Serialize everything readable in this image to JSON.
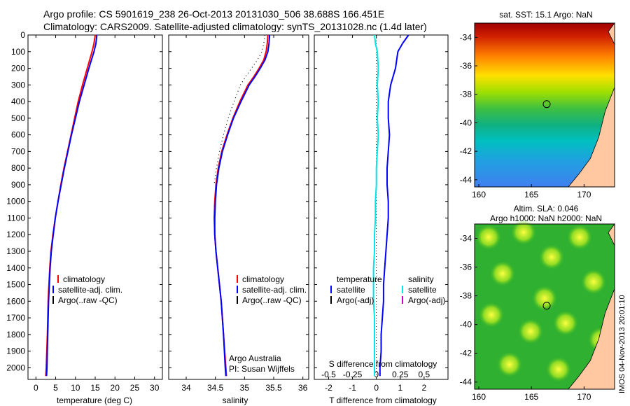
{
  "header": {
    "line1": "Argo profile: CS 5901619_238 26-Oct-2013 20131030_506 38.688S 166.451E",
    "line2": "Climatology: CARS2009. Satellite-adjusted climatology: synTS_20131028.nc (1.4d later)"
  },
  "footer": {
    "credit_line1": "Argo Australia",
    "credit_line2": "PI: Susan Wijffels",
    "side_stamp": "IMOS 04-Nov-2013 20:01:10"
  },
  "colors": {
    "climatology": "#ff0000",
    "satellite": "#0000ff",
    "argo": "#000000",
    "s_satellite": "#00e5e5",
    "s_argo": "#cc00cc",
    "land": "#ffc8a0"
  },
  "legend_tc": [
    {
      "label": "climatology",
      "color": "#ff0000"
    },
    {
      "label": "satellite-adj. clim.",
      "color": "#0000ff"
    },
    {
      "label": "Argo(..raw -QC)",
      "color": "#000000"
    }
  ],
  "legend_diff": {
    "temperature_title": "temperature",
    "salinity_title": "salinity",
    "temperature_items": [
      {
        "label": "satellite",
        "color": "#0000ff"
      },
      {
        "label": "Argo(-adj)",
        "color": "#000000"
      }
    ],
    "salinity_items": [
      {
        "label": "satellite",
        "color": "#00e5e5"
      },
      {
        "label": "Argo(-adj)",
        "color": "#cc00cc"
      }
    ]
  },
  "chart_data": [
    {
      "type": "line",
      "name": "temperature_profile",
      "xlabel": "temperature (deg C)",
      "ylabel": "",
      "xlim": [
        -2,
        32
      ],
      "ylim": [
        2070,
        0
      ],
      "y_reversed": true,
      "xticks": [
        0,
        5,
        10,
        15,
        20,
        25,
        30
      ],
      "yticks": [
        0,
        100,
        200,
        300,
        400,
        500,
        600,
        700,
        800,
        900,
        1000,
        1100,
        1200,
        1300,
        1400,
        1500,
        1600,
        1700,
        1800,
        1900,
        2000
      ],
      "series": [
        {
          "name": "climatology",
          "depth": [
            0,
            50,
            100,
            200,
            300,
            400,
            500,
            600,
            700,
            800,
            900,
            1000,
            1100,
            1200,
            1300,
            1400,
            1500,
            1600,
            1800,
            2000,
            2050
          ],
          "values": [
            15.0,
            14.7,
            14.2,
            13.0,
            11.8,
            10.7,
            9.8,
            8.9,
            8.0,
            7.1,
            6.3,
            5.6,
            4.9,
            4.3,
            3.8,
            3.5,
            3.3,
            3.1,
            2.9,
            2.6,
            2.5
          ]
        },
        {
          "name": "satellite-adj. clim.",
          "depth": [
            0,
            50,
            100,
            200,
            300,
            400,
            500,
            600,
            700,
            800,
            900,
            1000,
            1100,
            1200,
            1300,
            1400,
            1500,
            1600,
            1800,
            2000,
            2050
          ],
          "values": [
            15.4,
            15.2,
            14.7,
            13.4,
            12.2,
            11.0,
            10.0,
            9.0,
            8.1,
            7.2,
            6.4,
            5.6,
            4.9,
            4.4,
            3.9,
            3.6,
            3.4,
            3.2,
            3.0,
            2.8,
            2.7
          ]
        }
      ]
    },
    {
      "type": "line",
      "name": "salinity_profile",
      "xlabel": "salinity",
      "ylabel": "",
      "xlim": [
        33.7,
        36.1
      ],
      "ylim": [
        2070,
        0
      ],
      "y_reversed": true,
      "xticks": [
        34,
        34.5,
        35,
        35.5,
        36
      ],
      "series": [
        {
          "name": "climatology",
          "depth": [
            0,
            50,
            100,
            150,
            200,
            250,
            300,
            400,
            500,
            600,
            700,
            800,
            900,
            1000,
            1100,
            1200,
            1300,
            1400,
            1500,
            1600,
            1800,
            2000,
            2050
          ],
          "values": [
            35.4,
            35.39,
            35.37,
            35.33,
            35.25,
            35.16,
            35.06,
            34.92,
            34.8,
            34.7,
            34.61,
            34.55,
            34.51,
            34.49,
            34.48,
            34.49,
            34.51,
            34.54,
            34.57,
            34.6,
            34.64,
            34.68,
            34.69
          ]
        },
        {
          "name": "satellite-adj. clim.",
          "depth": [
            0,
            50,
            100,
            150,
            200,
            250,
            300,
            400,
            500,
            600,
            700,
            800,
            900,
            1000,
            1100,
            1200,
            1300,
            1400,
            1500,
            1600,
            1800,
            2000,
            2050
          ],
          "values": [
            35.43,
            35.42,
            35.4,
            35.35,
            35.27,
            35.18,
            35.08,
            34.94,
            34.81,
            34.71,
            34.62,
            34.56,
            34.52,
            34.5,
            34.49,
            34.49,
            34.51,
            34.54,
            34.57,
            34.6,
            34.64,
            34.67,
            34.68
          ]
        },
        {
          "name": "Argo(..raw -QC)",
          "depth": [
            0,
            50,
            100,
            150,
            200,
            250,
            300,
            400,
            500,
            600,
            700,
            800,
            900
          ],
          "values": [
            35.35,
            35.33,
            35.3,
            35.22,
            35.12,
            35.02,
            34.93,
            34.82,
            34.72,
            34.64,
            34.57,
            34.52,
            34.48
          ]
        }
      ]
    },
    {
      "type": "line",
      "name": "difference_from_climatology",
      "xlabel": "T difference from climatology",
      "xlabel_top": "S difference from climatology",
      "xlim": [
        -2.6,
        3.0
      ],
      "xlim_top": [
        -0.65,
        0.75
      ],
      "ylim": [
        2070,
        0
      ],
      "y_reversed": true,
      "xticks": [
        -2,
        -1,
        0,
        1,
        2
      ],
      "xticks_top": [
        -0.5,
        -0.25,
        0,
        0.25,
        0.5
      ],
      "series": [
        {
          "name": "temperature satellite",
          "depth": [
            0,
            50,
            100,
            200,
            300,
            400,
            500,
            600,
            700,
            800,
            900,
            1000,
            1100,
            1200,
            1300,
            1400,
            1500,
            1600,
            1700,
            1800,
            1900,
            2000,
            2050
          ],
          "values": [
            1.35,
            1.1,
            0.9,
            0.8,
            0.6,
            0.5,
            0.5,
            0.55,
            0.5,
            0.45,
            0.45,
            0.5,
            0.5,
            0.45,
            0.4,
            0.35,
            0.3,
            0.3,
            0.25,
            0.2,
            0.2,
            0.15,
            0.15
          ]
        },
        {
          "name": "salinity satellite",
          "depth": [
            0,
            50,
            100,
            200,
            300,
            400,
            500,
            600,
            700,
            800,
            900,
            1000,
            1100,
            1200,
            1300,
            1400,
            1500,
            1600,
            1700,
            1800,
            1900,
            2000,
            2050
          ],
          "values": [
            -0.02,
            -0.01,
            0.01,
            0.02,
            0.01,
            0.02,
            0.01,
            0.02,
            0.01,
            0.0,
            0.0,
            -0.01,
            -0.01,
            -0.02,
            -0.02,
            -0.03,
            -0.03,
            -0.03,
            -0.02,
            -0.02,
            -0.02,
            -0.02,
            -0.02
          ]
        }
      ]
    },
    {
      "type": "heatmap",
      "name": "sst_map",
      "title": "sat. SST: 15.1  Argo: NaN",
      "xlim": [
        159.6,
        172.9
      ],
      "ylim": [
        -44.5,
        -33.0
      ],
      "xticks": [
        160,
        165,
        170
      ],
      "yticks": [
        -34,
        -36,
        -38,
        -40,
        -42,
        -44
      ],
      "marker": {
        "lon": 166.451,
        "lat": -38.688
      }
    },
    {
      "type": "heatmap",
      "name": "sla_map",
      "title_line1": "Altim. SLA: 0.046",
      "title_line2": "Argo h1000: NaN h2000: NaN",
      "xlim": [
        159.6,
        172.9
      ],
      "ylim": [
        -44.5,
        -33.0
      ],
      "xticks": [
        160,
        165,
        170
      ],
      "yticks": [
        -34,
        -36,
        -38,
        -40,
        -42,
        -44
      ],
      "marker": {
        "lon": 166.451,
        "lat": -38.688
      }
    }
  ]
}
